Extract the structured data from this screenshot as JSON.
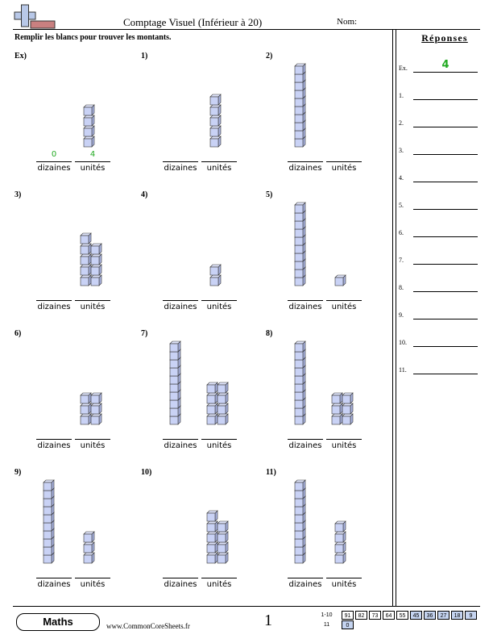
{
  "header": {
    "title": "Comptage Visuel (Inférieur à 20)",
    "name_label": "Nom:",
    "instructions": "Remplir les blancs pour trouver les montants."
  },
  "labels": {
    "tens": "dizaines",
    "ones": "unités"
  },
  "problems": [
    {
      "label": "Ex)",
      "tens": 0,
      "ones": 4,
      "answer_tens": "0",
      "answer_ones": "4"
    },
    {
      "label": "1)",
      "tens": 0,
      "ones": 5
    },
    {
      "label": "2)",
      "tens": 1,
      "ones": 0
    },
    {
      "label": "3)",
      "tens": 0,
      "ones": 9
    },
    {
      "label": "4)",
      "tens": 0,
      "ones": 2
    },
    {
      "label": "5)",
      "tens": 1,
      "ones": 1
    },
    {
      "label": "6)",
      "tens": 0,
      "ones": 6
    },
    {
      "label": "7)",
      "tens": 1,
      "ones": 8
    },
    {
      "label": "8)",
      "tens": 1,
      "ones": 6
    },
    {
      "label": "9)",
      "tens": 1,
      "ones": 3
    },
    {
      "label": "10)",
      "tens": 0,
      "ones": 9
    },
    {
      "label": "11)",
      "tens": 1,
      "ones": 4
    }
  ],
  "answers": {
    "title": "Réponses",
    "items": [
      {
        "label": "Ex.",
        "value": "4"
      },
      {
        "label": "1.",
        "value": ""
      },
      {
        "label": "2.",
        "value": ""
      },
      {
        "label": "3.",
        "value": ""
      },
      {
        "label": "4.",
        "value": ""
      },
      {
        "label": "5.",
        "value": ""
      },
      {
        "label": "6.",
        "value": ""
      },
      {
        "label": "7.",
        "value": ""
      },
      {
        "label": "8.",
        "value": ""
      },
      {
        "label": "9.",
        "value": ""
      },
      {
        "label": "10.",
        "value": ""
      },
      {
        "label": "11.",
        "value": ""
      }
    ]
  },
  "footer": {
    "subject": "Maths",
    "url": "www.CommonCoreSheets.fr",
    "page": "1",
    "key_row1_label": "1-10",
    "key_row1": [
      "91",
      "82",
      "73",
      "64",
      "55",
      "45",
      "36",
      "27",
      "18",
      "9"
    ],
    "key_row2_label": "11",
    "key_row2": [
      "0"
    ]
  },
  "colors": {
    "cube_fill": "#c9d2f5",
    "answer_green": "#22aa22",
    "key_shade": "#c5d4f0"
  }
}
